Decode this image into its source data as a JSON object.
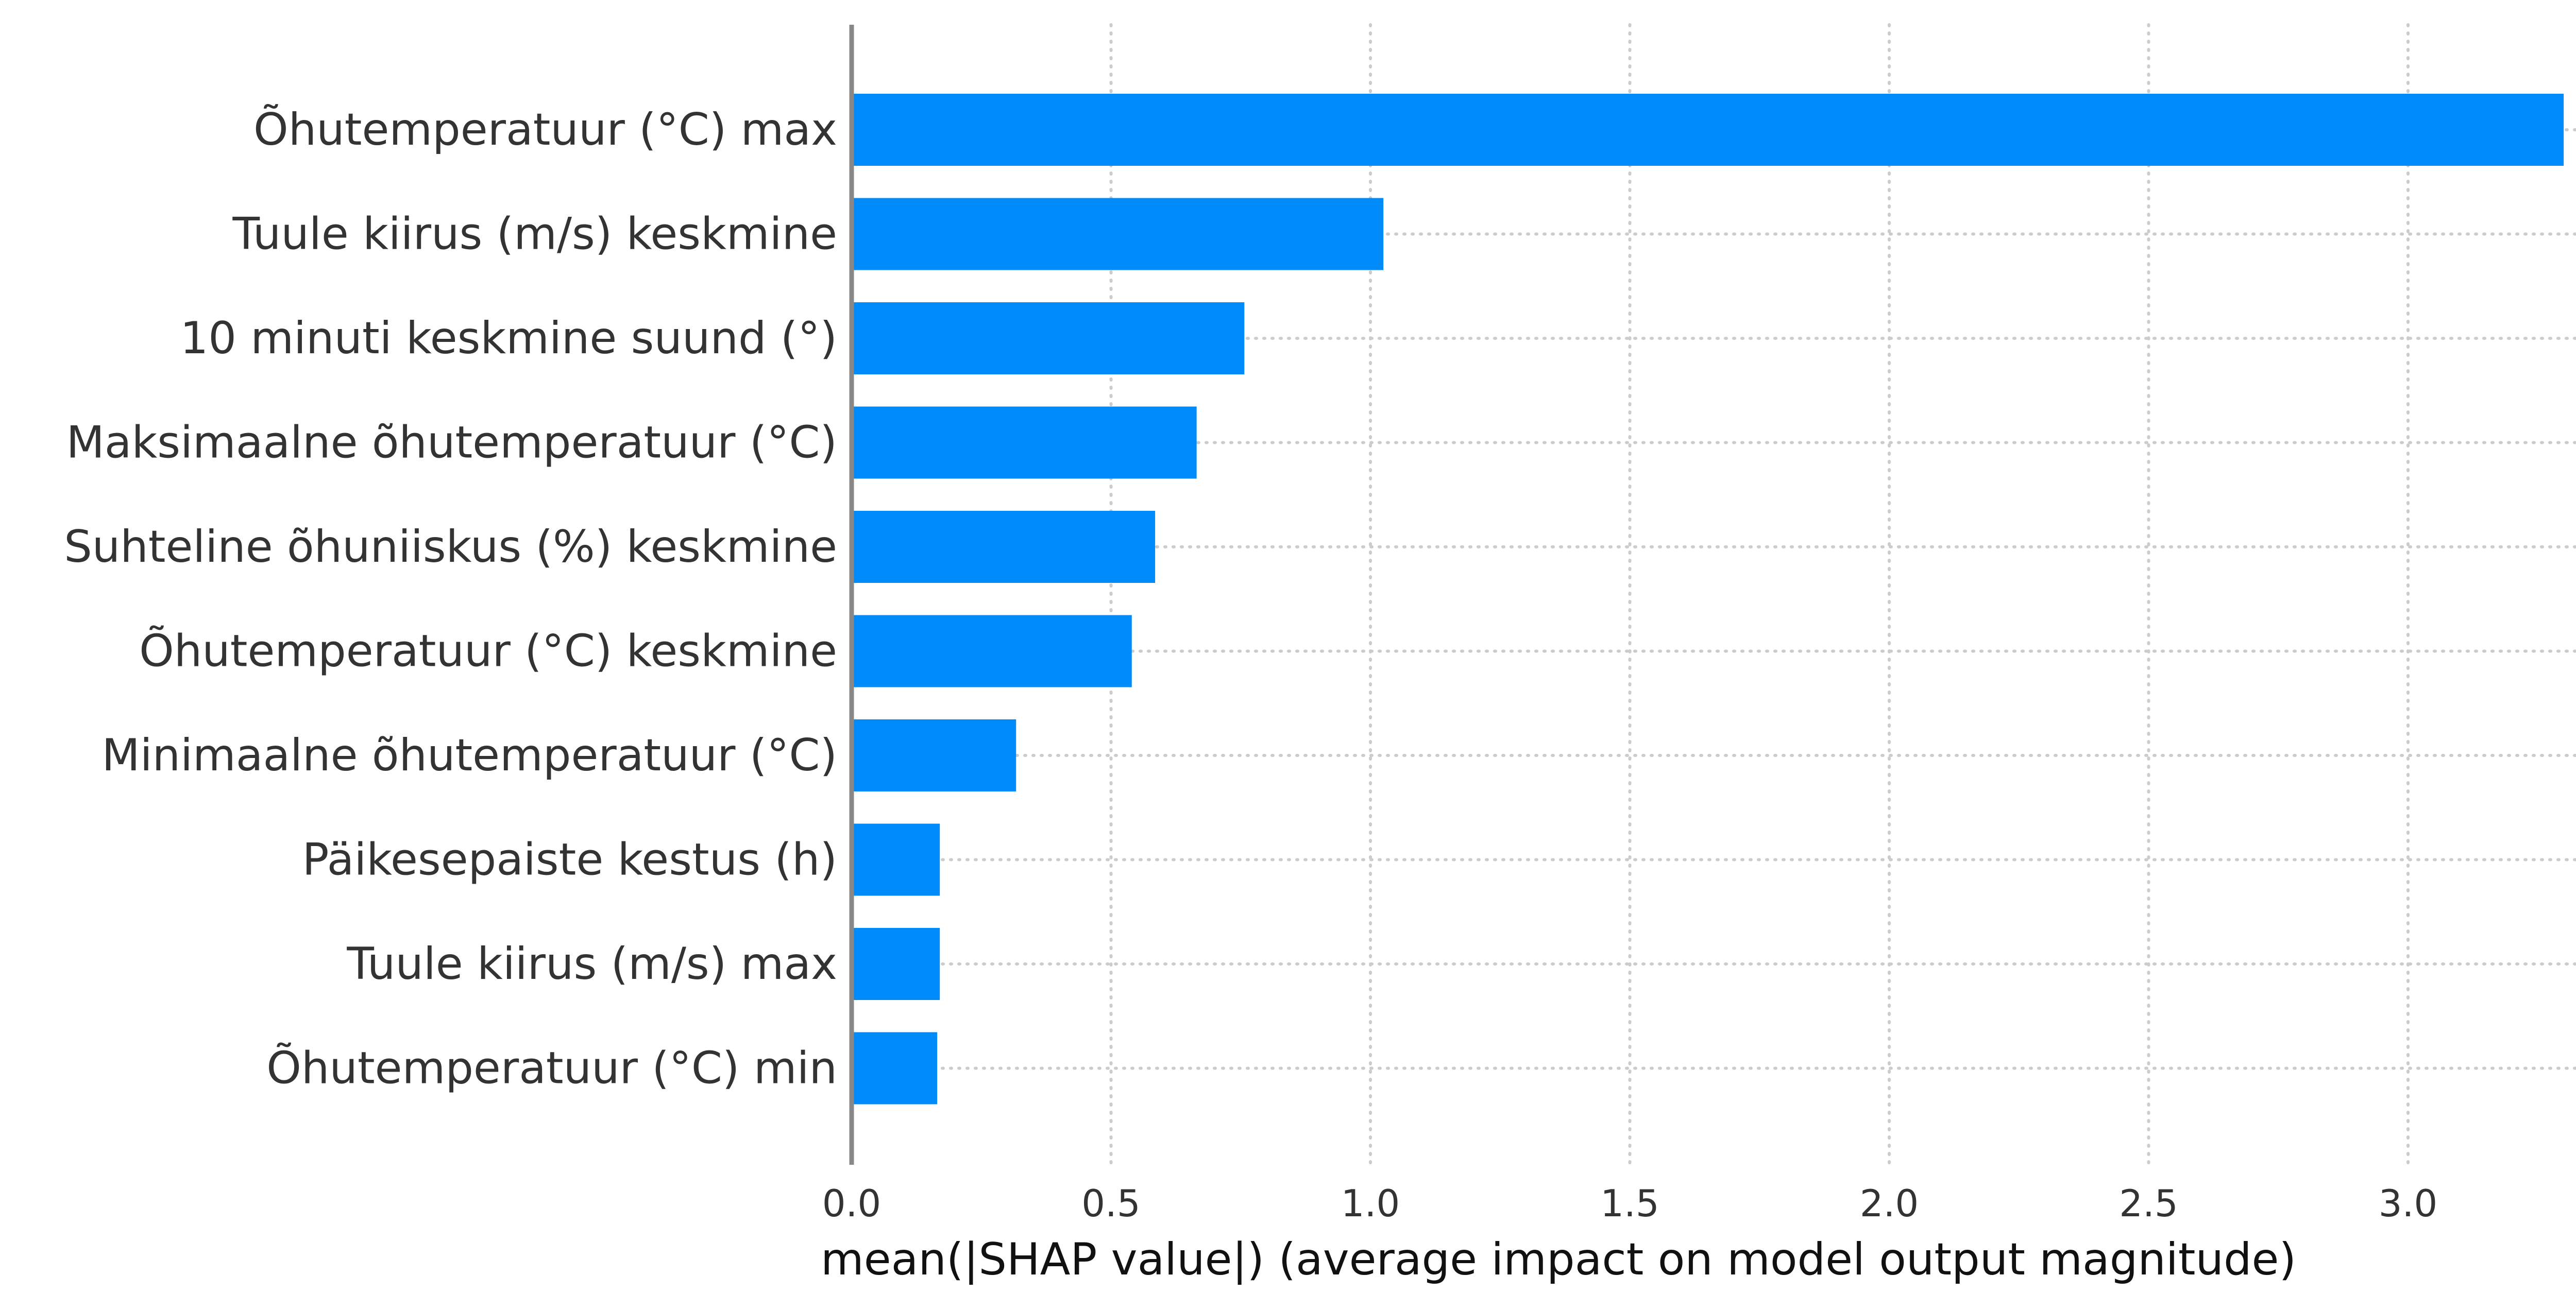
{
  "chart_data": {
    "type": "bar",
    "orientation": "horizontal",
    "categories": [
      "Õhutemperatuur (°C) max",
      "Tuule kiirus (m/s) keskmine",
      "10 minuti keskmine suund (°)",
      "Maksimaalne õhutemperatuur (°C)",
      "Suhteline õhuniiskus (%) keskmine",
      "Õhutemperatuur (°C) keskmine",
      "Minimaalne õhutemperatuur (°C)",
      "Päikesepaiste kestus (h)",
      "Tuule kiirus (m/s) max",
      "Õhutemperatuur (°C) min"
    ],
    "values": [
      3.3,
      1.025,
      0.757,
      0.665,
      0.585,
      0.54,
      0.317,
      0.17,
      0.17,
      0.165
    ],
    "xlabel": "mean(|SHAP value|) (average impact on model output magnitude)",
    "ylabel": "",
    "xlim": [
      0,
      3.45
    ],
    "xticks": [
      0.0,
      0.5,
      1.0,
      1.5,
      2.0,
      2.5,
      3.0
    ],
    "xtick_labels": [
      "0.0",
      "0.5",
      "1.0",
      "1.5",
      "2.0",
      "2.5",
      "3.0"
    ],
    "grid": true,
    "bar_color": "#008bfb",
    "zero_axis_color": "#888888"
  }
}
